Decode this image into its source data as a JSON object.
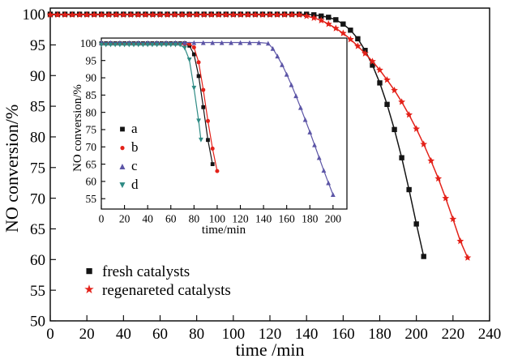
{
  "chart_data": [
    {
      "type": "line",
      "title": "",
      "xlabel": "time /min",
      "ylabel": "NO conversion/%",
      "xlim": [
        0,
        240
      ],
      "ylim": [
        50,
        101
      ],
      "x_ticks": [
        0,
        20,
        40,
        60,
        80,
        100,
        120,
        140,
        160,
        180,
        200,
        220,
        240
      ],
      "y_ticks": [
        50,
        55,
        60,
        65,
        70,
        75,
        80,
        85,
        90,
        95,
        100
      ],
      "grid": false,
      "legend_position": "lower-left",
      "series": [
        {
          "name": "fresh catalysts",
          "marker": "square",
          "color": "#141414",
          "msize": 3.2,
          "points": [
            [
              0,
              100
            ],
            [
              4,
              100
            ],
            [
              8,
              100
            ],
            [
              12,
              100
            ],
            [
              16,
              100
            ],
            [
              20,
              100
            ],
            [
              24,
              100
            ],
            [
              28,
              100
            ],
            [
              32,
              100
            ],
            [
              36,
              100
            ],
            [
              40,
              100
            ],
            [
              44,
              100
            ],
            [
              48,
              100
            ],
            [
              52,
              100
            ],
            [
              56,
              100
            ],
            [
              60,
              100
            ],
            [
              64,
              100
            ],
            [
              68,
              100
            ],
            [
              72,
              100
            ],
            [
              76,
              100
            ],
            [
              80,
              100
            ],
            [
              84,
              100
            ],
            [
              88,
              100
            ],
            [
              92,
              100
            ],
            [
              96,
              100
            ],
            [
              100,
              100
            ],
            [
              104,
              100
            ],
            [
              108,
              100
            ],
            [
              112,
              100
            ],
            [
              116,
              100
            ],
            [
              120,
              100
            ],
            [
              124,
              100
            ],
            [
              128,
              100
            ],
            [
              132,
              100
            ],
            [
              136,
              100
            ],
            [
              140,
              100
            ],
            [
              144,
              99.9
            ],
            [
              148,
              99.7
            ],
            [
              152,
              99.5
            ],
            [
              156,
              99.1
            ],
            [
              160,
              98.4
            ],
            [
              164,
              97.4
            ],
            [
              168,
              96.0
            ],
            [
              172,
              94.1
            ],
            [
              176,
              91.7
            ],
            [
              180,
              88.8
            ],
            [
              184,
              85.3
            ],
            [
              188,
              81.2
            ],
            [
              192,
              76.6
            ],
            [
              196,
              71.4
            ],
            [
              200,
              65.8
            ],
            [
              204,
              60.5
            ]
          ]
        },
        {
          "name": "regenareted catalysts",
          "marker": "star",
          "color": "#e32119",
          "msize": 4.6,
          "points": [
            [
              0,
              99.9
            ],
            [
              4,
              99.9
            ],
            [
              8,
              99.9
            ],
            [
              12,
              99.9
            ],
            [
              16,
              99.9
            ],
            [
              20,
              99.9
            ],
            [
              24,
              99.9
            ],
            [
              28,
              99.9
            ],
            [
              32,
              99.9
            ],
            [
              36,
              99.9
            ],
            [
              40,
              99.9
            ],
            [
              44,
              99.9
            ],
            [
              48,
              99.9
            ],
            [
              52,
              99.9
            ],
            [
              56,
              99.9
            ],
            [
              60,
              99.9
            ],
            [
              64,
              99.9
            ],
            [
              68,
              99.9
            ],
            [
              72,
              99.9
            ],
            [
              76,
              99.9
            ],
            [
              80,
              99.9
            ],
            [
              84,
              99.9
            ],
            [
              88,
              99.9
            ],
            [
              92,
              99.9
            ],
            [
              96,
              99.9
            ],
            [
              100,
              99.9
            ],
            [
              104,
              99.9
            ],
            [
              108,
              99.9
            ],
            [
              112,
              99.9
            ],
            [
              116,
              99.9
            ],
            [
              120,
              99.9
            ],
            [
              124,
              99.9
            ],
            [
              128,
              99.9
            ],
            [
              132,
              99.9
            ],
            [
              136,
              99.9
            ],
            [
              140,
              99.7
            ],
            [
              144,
              99.4
            ],
            [
              148,
              99.0
            ],
            [
              152,
              98.4
            ],
            [
              156,
              97.7
            ],
            [
              160,
              96.9
            ],
            [
              164,
              95.9
            ],
            [
              168,
              94.8
            ],
            [
              172,
              93.6
            ],
            [
              176,
              92.3
            ],
            [
              180,
              90.9
            ],
            [
              184,
              89.3
            ],
            [
              188,
              87.6
            ],
            [
              192,
              85.7
            ],
            [
              196,
              83.6
            ],
            [
              200,
              81.3
            ],
            [
              204,
              78.8
            ],
            [
              208,
              76.1
            ],
            [
              212,
              73.2
            ],
            [
              216,
              70.0
            ],
            [
              220,
              66.6
            ],
            [
              224,
              63.0
            ],
            [
              228,
              60.3
            ]
          ]
        }
      ]
    },
    {
      "type": "line",
      "title": "",
      "xlabel": "time/min",
      "ylabel": "NO conversion/%",
      "xlim": [
        0,
        212
      ],
      "ylim": [
        52,
        101.5
      ],
      "x_ticks": [
        0,
        20,
        40,
        60,
        80,
        100,
        120,
        140,
        160,
        180,
        200
      ],
      "y_ticks": [
        55,
        60,
        65,
        70,
        75,
        80,
        85,
        90,
        95,
        100
      ],
      "grid": false,
      "legend_position": "center-left",
      "series": [
        {
          "name": "a",
          "marker": "square",
          "color": "#141414",
          "msize": 2.4,
          "points": [
            [
              0,
              100
            ],
            [
              4,
              100
            ],
            [
              8,
              100
            ],
            [
              12,
              100
            ],
            [
              16,
              100
            ],
            [
              20,
              100
            ],
            [
              24,
              100
            ],
            [
              28,
              100
            ],
            [
              32,
              100
            ],
            [
              36,
              100
            ],
            [
              40,
              100
            ],
            [
              44,
              100
            ],
            [
              48,
              100
            ],
            [
              52,
              100
            ],
            [
              56,
              100
            ],
            [
              60,
              100
            ],
            [
              64,
              100
            ],
            [
              68,
              100
            ],
            [
              72,
              100
            ],
            [
              76,
              99.3
            ],
            [
              80,
              96.8
            ],
            [
              84,
              90.5
            ],
            [
              88,
              81.5
            ],
            [
              92,
              72.0
            ],
            [
              96,
              65.0
            ]
          ]
        },
        {
          "name": "b",
          "marker": "circle",
          "color": "#e32119",
          "msize": 2.5,
          "points": [
            [
              0,
              99.8
            ],
            [
              4,
              99.8
            ],
            [
              8,
              99.8
            ],
            [
              12,
              99.8
            ],
            [
              16,
              99.8
            ],
            [
              20,
              99.8
            ],
            [
              24,
              99.8
            ],
            [
              28,
              99.8
            ],
            [
              32,
              99.8
            ],
            [
              36,
              99.8
            ],
            [
              40,
              99.8
            ],
            [
              44,
              99.8
            ],
            [
              48,
              99.8
            ],
            [
              52,
              99.8
            ],
            [
              56,
              99.8
            ],
            [
              60,
              99.8
            ],
            [
              64,
              99.8
            ],
            [
              68,
              99.8
            ],
            [
              72,
              99.8
            ],
            [
              76,
              99.8
            ],
            [
              80,
              98.8
            ],
            [
              84,
              94.5
            ],
            [
              88,
              86.5
            ],
            [
              92,
              77.5
            ],
            [
              96,
              69.5
            ],
            [
              100,
              63.0
            ]
          ]
        },
        {
          "name": "c",
          "marker": "triangle-up",
          "color": "#5c55a6",
          "msize": 2.9,
          "points": [
            [
              0,
              100.2
            ],
            [
              8,
              100.2
            ],
            [
              16,
              100.2
            ],
            [
              24,
              100.2
            ],
            [
              32,
              100.2
            ],
            [
              40,
              100.2
            ],
            [
              48,
              100.2
            ],
            [
              56,
              100.2
            ],
            [
              64,
              100.2
            ],
            [
              72,
              100.2
            ],
            [
              80,
              100.2
            ],
            [
              88,
              100.2
            ],
            [
              96,
              100.2
            ],
            [
              104,
              100.2
            ],
            [
              112,
              100.2
            ],
            [
              120,
              100.2
            ],
            [
              128,
              100.2
            ],
            [
              136,
              100.2
            ],
            [
              144,
              100.0
            ],
            [
              148,
              98.5
            ],
            [
              152,
              96.3
            ],
            [
              156,
              93.8
            ],
            [
              160,
              91.0
            ],
            [
              164,
              88.0
            ],
            [
              168,
              84.8
            ],
            [
              172,
              81.4
            ],
            [
              176,
              77.9
            ],
            [
              180,
              74.3
            ],
            [
              184,
              70.6
            ],
            [
              188,
              66.9
            ],
            [
              192,
              63.2
            ],
            [
              196,
              59.6
            ],
            [
              200,
              56.2
            ]
          ]
        },
        {
          "name": "d",
          "marker": "triangle-down",
          "color": "#2e8b84",
          "msize": 2.9,
          "points": [
            [
              0,
              99.5
            ],
            [
              4,
              99.5
            ],
            [
              8,
              99.5
            ],
            [
              12,
              99.5
            ],
            [
              16,
              99.5
            ],
            [
              20,
              99.5
            ],
            [
              24,
              99.5
            ],
            [
              28,
              99.5
            ],
            [
              32,
              99.5
            ],
            [
              36,
              99.5
            ],
            [
              40,
              99.5
            ],
            [
              44,
              99.5
            ],
            [
              48,
              99.5
            ],
            [
              52,
              99.5
            ],
            [
              56,
              99.5
            ],
            [
              60,
              99.5
            ],
            [
              64,
              99.5
            ],
            [
              68,
              99.5
            ],
            [
              72,
              98.6
            ],
            [
              76,
              95.2
            ],
            [
              80,
              87.0
            ],
            [
              84,
              77.5
            ],
            [
              86,
              72.0
            ]
          ]
        }
      ]
    }
  ]
}
